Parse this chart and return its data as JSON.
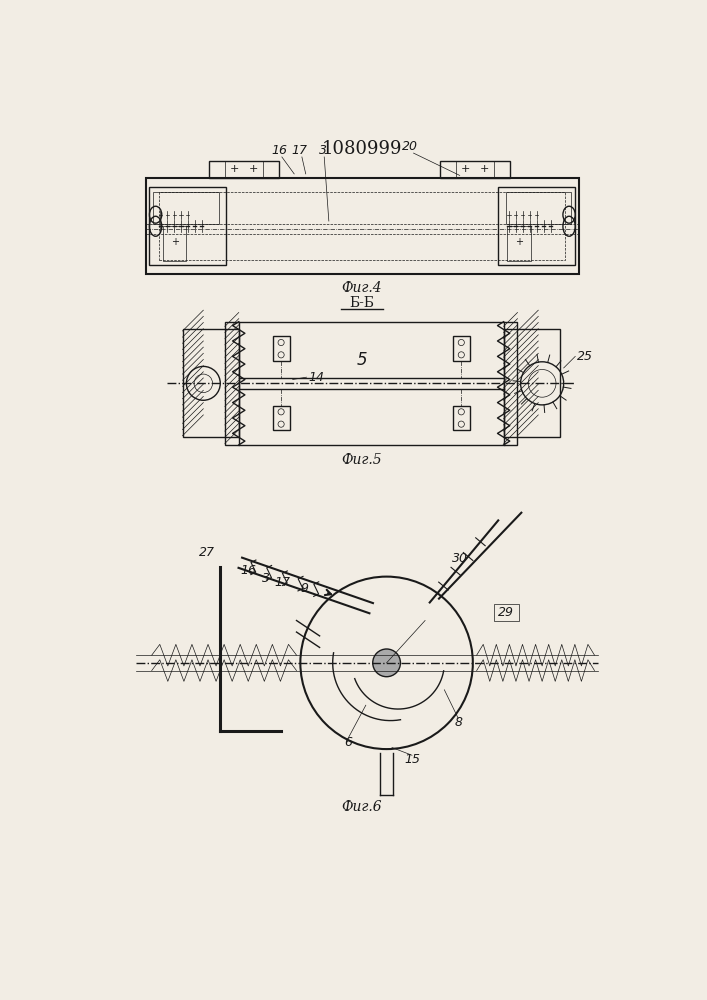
{
  "title": "1080999",
  "bg_color": "#f2ede4",
  "line_color": "#1a1a1a",
  "fig4_label": "Фиг.4",
  "fig5_label": "Фиг.5",
  "fig6_label": "Фиг.6",
  "bb_label": "Б-Б"
}
